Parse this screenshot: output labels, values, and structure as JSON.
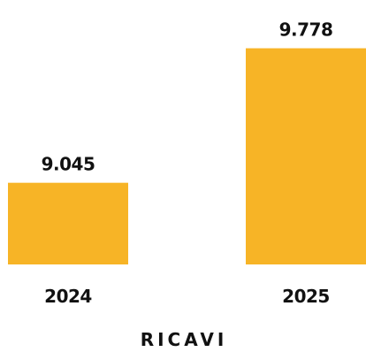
{
  "chart_data": {
    "type": "bar",
    "categories": [
      "2024",
      "2025"
    ],
    "values": [
      9.045,
      9.778
    ],
    "value_labels": [
      "9.045",
      "9.778"
    ],
    "xlabel": "RICAVI",
    "ylabel": "",
    "grid": false,
    "ylim": [
      8.6,
      9.8
    ],
    "colors": {
      "bar": "#f7b426",
      "text": "#111111"
    }
  }
}
